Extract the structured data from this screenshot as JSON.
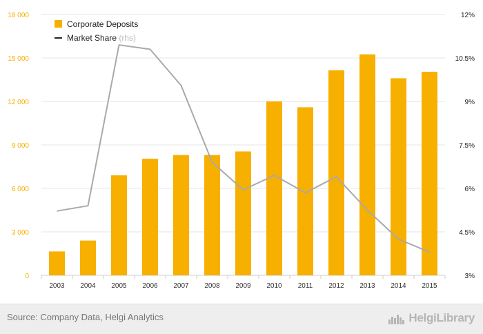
{
  "chart_data": {
    "type": "bar",
    "categories": [
      "2003",
      "2004",
      "2005",
      "2006",
      "2007",
      "2008",
      "2009",
      "2010",
      "2011",
      "2012",
      "2013",
      "2014",
      "2015"
    ],
    "series": [
      {
        "name": "Corporate Deposits",
        "type": "bar",
        "axis": "left",
        "color": "#f7b000",
        "values": [
          1650,
          2400,
          6900,
          8050,
          8300,
          8300,
          8550,
          12000,
          11600,
          14150,
          15250,
          13600,
          14050
        ]
      },
      {
        "name": "Market Share",
        "name_suffix": "(rhs)",
        "type": "line",
        "axis": "right",
        "color": "#a9a9a9",
        "values": [
          5.22,
          5.4,
          10.95,
          10.8,
          9.55,
          6.9,
          5.95,
          6.45,
          5.85,
          6.4,
          5.25,
          4.25,
          3.8
        ]
      }
    ],
    "y_left": {
      "ylim": [
        0,
        18000
      ],
      "ticks": [
        0,
        3000,
        6000,
        9000,
        12000,
        15000,
        18000
      ],
      "tick_labels": [
        "0",
        "3 000",
        "6 000",
        "9 000",
        "12 000",
        "15 000",
        "18 000"
      ]
    },
    "y_right": {
      "ylim": [
        3,
        12
      ],
      "ticks": [
        3,
        4.5,
        6,
        7.5,
        9,
        10.5,
        12
      ],
      "tick_labels": [
        "3%",
        "4.5%",
        "6%",
        "7.5%",
        "9%",
        "10.5%",
        "12%"
      ]
    },
    "grid": true,
    "legend_position": "top-left"
  },
  "footer": {
    "source": "Source: Company Data, Helgi Analytics",
    "logo_text": "HelgiLibrary"
  }
}
